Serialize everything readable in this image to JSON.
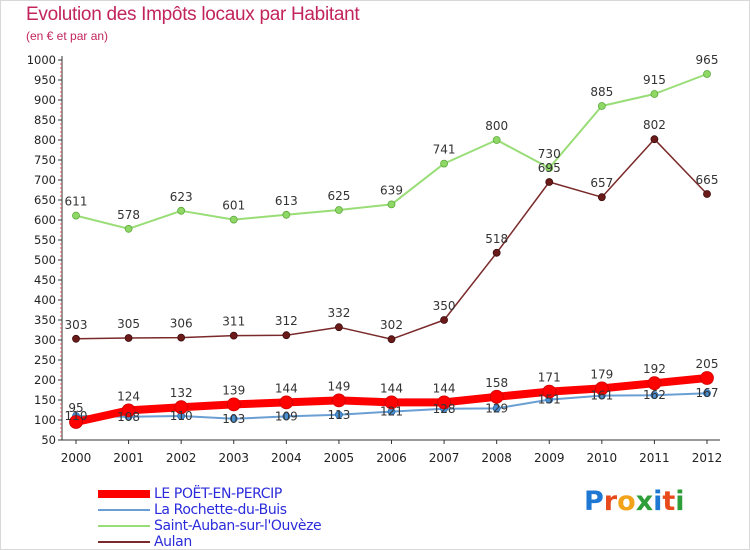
{
  "header": {
    "title": "Evolution des Impôts locaux par Habitant",
    "subtitle": "(en € et par an)"
  },
  "logo": {
    "text": "Proxiti"
  },
  "chart_data": {
    "type": "line",
    "title": "Evolution des Impôts locaux par Habitant",
    "subtitle": "(en € et par an)",
    "xlabel": "",
    "ylabel": "",
    "x": [
      "2000",
      "2001",
      "2002",
      "2003",
      "2004",
      "2005",
      "2006",
      "2007",
      "2008",
      "2009",
      "2010",
      "2011",
      "2012"
    ],
    "ylim": [
      50,
      1000
    ],
    "yticks": [
      50,
      100,
      150,
      200,
      250,
      300,
      350,
      400,
      450,
      500,
      550,
      600,
      650,
      700,
      750,
      800,
      850,
      900,
      950,
      1000
    ],
    "grid": false,
    "legend_position": "bottom-left",
    "series": [
      {
        "name": "LE POËT-EN-PERCIP",
        "color": "#ff0000",
        "values": [
          95,
          124,
          132,
          139,
          144,
          149,
          144,
          144,
          158,
          171,
          179,
          192,
          205
        ]
      },
      {
        "name": "La Rochette-du-Buis",
        "color": "#6a9fd4",
        "values": [
          110,
          108,
          110,
          103,
          109,
          113,
          121,
          128,
          129,
          151,
          161,
          162,
          167
        ]
      },
      {
        "name": "Saint-Auban-sur-l'Ouvèze",
        "color": "#99dd77",
        "values": [
          611,
          578,
          623,
          601,
          613,
          625,
          639,
          741,
          800,
          730,
          885,
          915,
          965
        ]
      },
      {
        "name": "Aulan",
        "color": "#7a2a2a",
        "values": [
          303,
          305,
          306,
          311,
          312,
          332,
          302,
          350,
          518,
          695,
          657,
          802,
          665
        ]
      }
    ]
  }
}
